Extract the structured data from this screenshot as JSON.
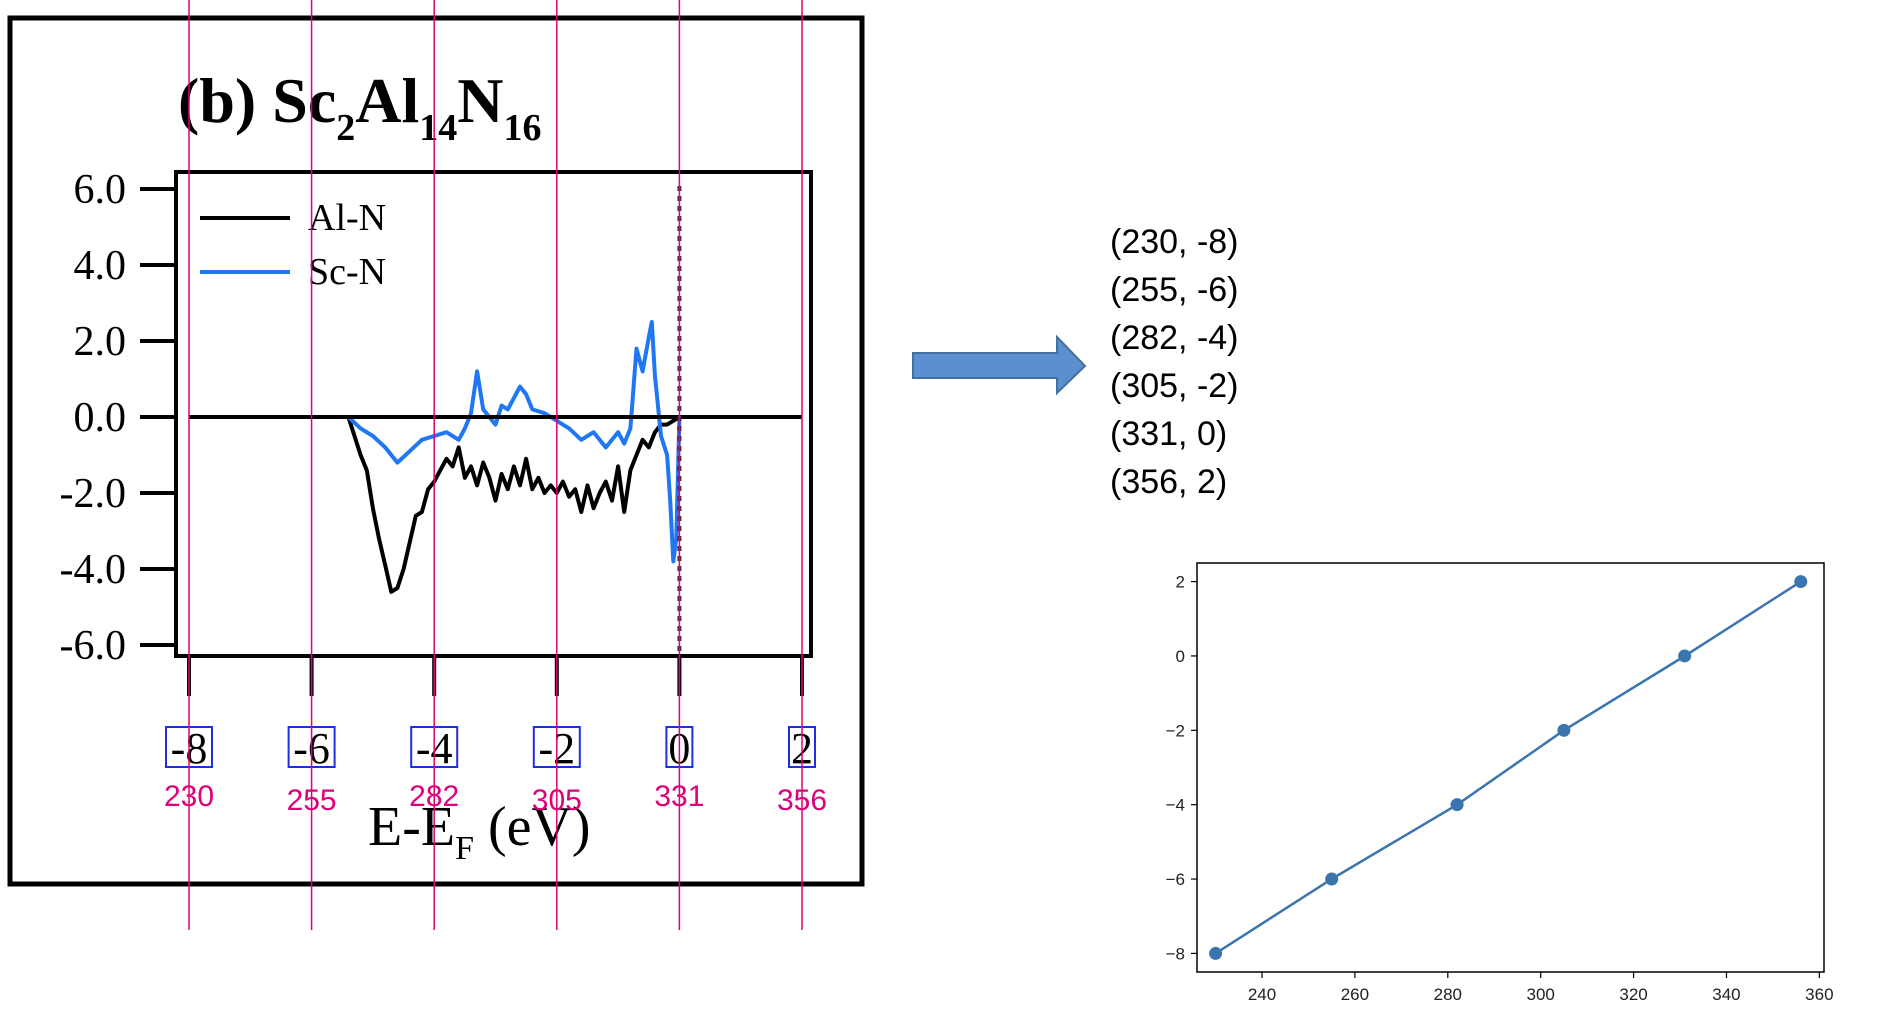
{
  "chart_data": [
    {
      "type": "line",
      "title": "(b) Sc2Al14N16",
      "title_parts": {
        "prefix": "(b) Sc",
        "sub1": "2",
        "mid1": "Al",
        "sub2": "14",
        "mid2": "N",
        "sub3": "16"
      },
      "xlabel": "E-EF (eV)",
      "xlabel_parts": {
        "main": "E-E",
        "sub": "F",
        "tail": " (eV)"
      },
      "ylabel": "",
      "ylim": [
        -6.0,
        6.0
      ],
      "yticks": [
        "6.0",
        "4.0",
        "2.0",
        "0.0",
        "-2.0",
        "-4.0",
        "-6.0"
      ],
      "yticks_values": [
        6,
        4,
        2,
        0,
        -2,
        -4,
        -6
      ],
      "xlim": [
        -8,
        2
      ],
      "xticks": [
        "-8",
        "-6",
        "-4",
        "-2",
        "0",
        "2"
      ],
      "xticks_values": [
        -8,
        -6,
        -4,
        -2,
        0,
        2
      ],
      "pixel_annotations": [
        "230",
        "255",
        "282",
        "305",
        "331",
        "356"
      ],
      "fermi_line_x": 0,
      "legend": [
        "Al-N",
        "Sc-N"
      ],
      "legend_position": "top-left",
      "series": [
        {
          "name": "Al-N",
          "color": "#000000",
          "x": [
            -8.0,
            -5.4,
            -5.2,
            -5.1,
            -5.0,
            -4.9,
            -4.8,
            -4.7,
            -4.6,
            -4.5,
            -4.4,
            -4.3,
            -4.2,
            -4.1,
            -4.0,
            -3.9,
            -3.8,
            -3.7,
            -3.6,
            -3.5,
            -3.4,
            -3.3,
            -3.2,
            -3.1,
            -3.0,
            -2.9,
            -2.8,
            -2.7,
            -2.6,
            -2.5,
            -2.4,
            -2.3,
            -2.2,
            -2.1,
            -2.0,
            -1.9,
            -1.8,
            -1.7,
            -1.6,
            -1.5,
            -1.4,
            -1.3,
            -1.2,
            -1.1,
            -1.0,
            -0.9,
            -0.8,
            -0.7,
            -0.6,
            -0.5,
            -0.4,
            -0.3,
            -0.2,
            -0.1,
            0.0,
            2.0
          ],
          "y": [
            0.0,
            0.0,
            -1.0,
            -1.4,
            -2.4,
            -3.2,
            -3.9,
            -4.6,
            -4.5,
            -4.0,
            -3.3,
            -2.6,
            -2.5,
            -1.9,
            -1.7,
            -1.4,
            -1.1,
            -1.3,
            -0.8,
            -1.6,
            -1.3,
            -1.8,
            -1.2,
            -1.6,
            -2.2,
            -1.5,
            -1.9,
            -1.3,
            -1.8,
            -1.1,
            -1.9,
            -1.6,
            -2.0,
            -1.8,
            -2.0,
            -1.7,
            -2.1,
            -1.9,
            -2.5,
            -1.8,
            -2.4,
            -2.0,
            -1.7,
            -2.2,
            -1.3,
            -2.5,
            -1.4,
            -1.0,
            -0.6,
            -0.8,
            -0.4,
            -0.2,
            -0.2,
            -0.1,
            0.0,
            0.0
          ]
        },
        {
          "name": "Sc-N",
          "color": "#1f77f4",
          "x": [
            -8.0,
            -5.4,
            -5.2,
            -5.0,
            -4.8,
            -4.6,
            -4.4,
            -4.2,
            -4.0,
            -3.8,
            -3.6,
            -3.5,
            -3.4,
            -3.3,
            -3.2,
            -3.0,
            -2.9,
            -2.8,
            -2.7,
            -2.6,
            -2.5,
            -2.4,
            -2.2,
            -2.0,
            -1.8,
            -1.6,
            -1.4,
            -1.2,
            -1.0,
            -0.9,
            -0.8,
            -0.7,
            -0.6,
            -0.5,
            -0.45,
            -0.4,
            -0.3,
            -0.2,
            -0.15,
            -0.1,
            -0.05,
            0.0,
            2.0
          ],
          "y": [
            0.0,
            0.0,
            -0.3,
            -0.5,
            -0.8,
            -1.2,
            -0.9,
            -0.6,
            -0.5,
            -0.4,
            -0.6,
            -0.3,
            0.1,
            1.2,
            0.2,
            -0.2,
            0.3,
            0.2,
            0.5,
            0.8,
            0.6,
            0.2,
            0.1,
            -0.1,
            -0.3,
            -0.6,
            -0.4,
            -0.8,
            -0.4,
            -0.7,
            -0.3,
            1.8,
            1.2,
            2.1,
            2.5,
            1.1,
            -0.5,
            -1.0,
            -2.2,
            -3.8,
            -3.2,
            0.0,
            0.0
          ]
        }
      ]
    },
    {
      "type": "table",
      "title": "",
      "rows": [
        "(230, -8)",
        "(255, -6)",
        "(282, -4)",
        "(305, -2)",
        "(331, 0)",
        "(356, 2)"
      ]
    },
    {
      "type": "line",
      "title": "",
      "xlabel": "",
      "ylabel": "",
      "x": [
        230,
        255,
        282,
        305,
        331,
        356
      ],
      "y": [
        -8,
        -6,
        -4,
        -2,
        0,
        2
      ],
      "xlim": [
        226,
        361
      ],
      "ylim": [
        -8.5,
        2.5
      ],
      "xticks": [
        "240",
        "260",
        "280",
        "300",
        "320",
        "340",
        "360"
      ],
      "xticks_values": [
        240,
        260,
        280,
        300,
        320,
        340,
        360
      ],
      "yticks": [
        "2",
        "0",
        "−2",
        "−4",
        "−6",
        "−8"
      ],
      "yticks_values": [
        2,
        0,
        -2,
        -4,
        -6,
        -8
      ],
      "color": "#3b75af",
      "grid": false
    }
  ],
  "colors": {
    "guide": "#e0007a",
    "box": "#1f2ee0",
    "arrow_fill": "#5b8fd0",
    "arrow_stroke": "#41719c"
  }
}
